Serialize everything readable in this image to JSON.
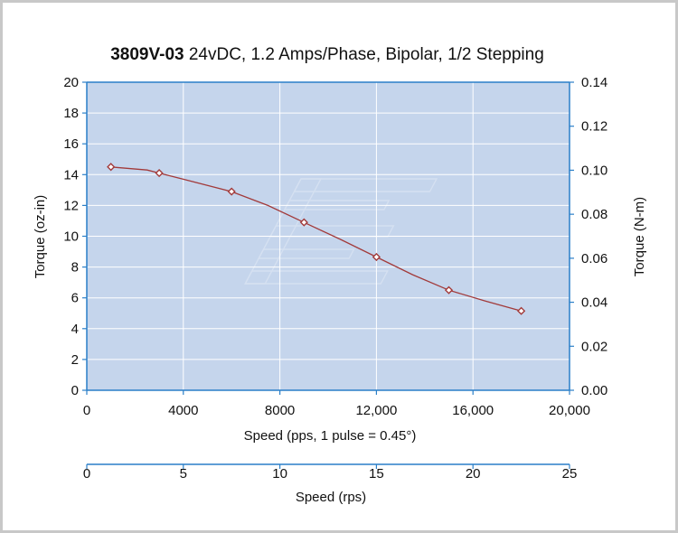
{
  "chart_data": {
    "type": "line",
    "title_bold": "3809V-03",
    "title_rest": " 24vDC, 1.2 Amps/Phase, Bipolar, 1/2 Stepping",
    "xlabel": "Speed (pps, 1 pulse = 0.45°)",
    "x2label": "Speed (rps)",
    "ylabel": "Torque (oz-in)",
    "y2label": "Torque (N-m)",
    "xlim": [
      0,
      20000
    ],
    "ylim": [
      0,
      20
    ],
    "x2lim": [
      0,
      25
    ],
    "y2lim": [
      0,
      0.14
    ],
    "xticks": [
      0,
      4000,
      8000,
      12000,
      16000,
      20000
    ],
    "xtick_labels": [
      "0",
      "4000",
      "8000",
      "12,000",
      "16,000",
      "20,000"
    ],
    "yticks": [
      0,
      2,
      4,
      6,
      8,
      10,
      12,
      14,
      16,
      18,
      20
    ],
    "ytick_labels": [
      "0",
      "2",
      "4",
      "6",
      "8",
      "10",
      "12",
      "14",
      "16",
      "18",
      "20"
    ],
    "y2ticks": [
      0,
      0.02,
      0.04,
      0.06,
      0.08,
      0.1,
      0.12,
      0.14
    ],
    "y2tick_labels": [
      "0.00",
      "0.02",
      "0.04",
      "0.06",
      "0.08",
      "0.10",
      "0.12",
      "0.14"
    ],
    "x2ticks": [
      0,
      5,
      10,
      15,
      20,
      25
    ],
    "x2tick_labels": [
      "0",
      "5",
      "10",
      "15",
      "20",
      "25"
    ],
    "grid": true,
    "series": [
      {
        "x": [
          1000,
          2500,
          3000,
          4000,
          5000,
          6000,
          7500,
          9000,
          10500,
          12000,
          13500,
          15000,
          16500,
          18000
        ],
        "y": [
          14.5,
          14.3,
          14.1,
          13.7,
          13.3,
          12.9,
          12.0,
          10.9,
          9.8,
          8.65,
          7.5,
          6.5,
          5.8,
          5.15
        ],
        "markers": [
          {
            "x": 1000,
            "y": 14.5
          },
          {
            "x": 3000,
            "y": 14.1
          },
          {
            "x": 6000,
            "y": 12.9
          },
          {
            "x": 9000,
            "y": 10.9
          },
          {
            "x": 12000,
            "y": 8.65
          },
          {
            "x": 15000,
            "y": 6.5
          },
          {
            "x": 18000,
            "y": 5.15
          }
        ]
      }
    ],
    "colors": {
      "plot_bg": "#c5d5ec",
      "grid": "#ffffff",
      "axis": "#2a7fc8",
      "line": "#a23a3a",
      "marker": "#a23a3a"
    }
  }
}
